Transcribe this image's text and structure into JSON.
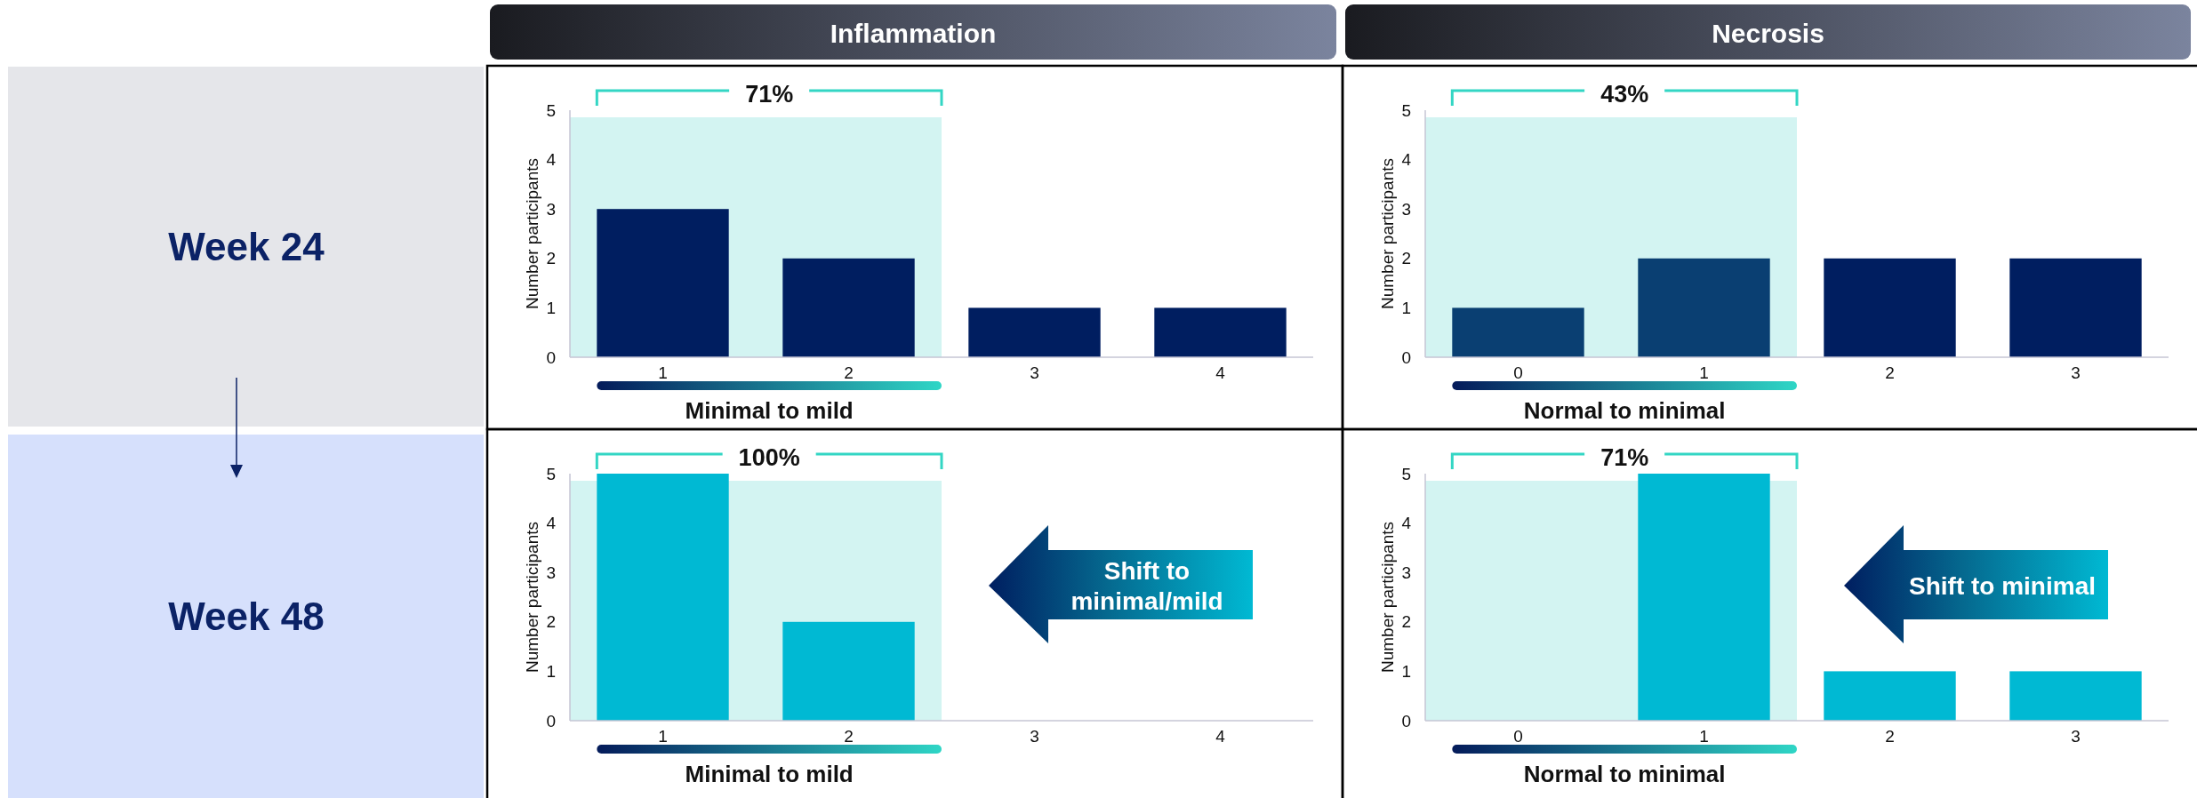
{
  "chart_data": [
    {
      "type": "other",
      "title": "Week 24"
    },
    {
      "type": "bar",
      "title": "Inflammation",
      "xlabel": "Minimal to mild",
      "ylabel": "Number participants",
      "categories": [
        "1",
        "2",
        "3",
        "4"
      ],
      "values": [
        3,
        2,
        1,
        1
      ],
      "color": "#001e60",
      "ylim": [
        0,
        5
      ],
      "yticks": [
        0,
        1,
        2,
        3,
        4,
        5
      ],
      "bands": [
        {
          "axis": "x",
          "from": "1",
          "to": "2",
          "label": "71%",
          "color": "#d3f4f2"
        }
      ]
    },
    {
      "type": "bar",
      "title": "Necrosis",
      "xlabel": "Normal to minimal",
      "ylabel": "Number participants",
      "categories": [
        "0",
        "1",
        "2",
        "3"
      ],
      "values": [
        1,
        2,
        2,
        2
      ],
      "colors": [
        "#0a3f72",
        "#0a3f72",
        "#001e60",
        "#001e60"
      ],
      "ylim": [
        0,
        5
      ],
      "yticks": [
        0,
        1,
        2,
        3,
        4,
        5
      ],
      "bands": [
        {
          "axis": "x",
          "from": "0",
          "to": "1",
          "label": "43%",
          "color": "#d3f4f2"
        }
      ]
    },
    {
      "type": "other",
      "title": "Week 48"
    },
    {
      "type": "bar",
      "xlabel": "Minimal to mild",
      "ylabel": "Number participants",
      "categories": [
        "1",
        "2",
        "3",
        "4"
      ],
      "values": [
        5,
        2,
        0,
        0
      ],
      "color": "#00b9d3",
      "ylim": [
        0,
        5
      ],
      "yticks": [
        0,
        1,
        2,
        3,
        4,
        5
      ],
      "bands": [
        {
          "axis": "x",
          "from": "1",
          "to": "2",
          "label": "100%",
          "color": "#d3f4f2"
        }
      ],
      "annotations": [
        "Shift to minimal/mild"
      ]
    },
    {
      "type": "bar",
      "xlabel": "Normal to minimal",
      "ylabel": "Number participants",
      "categories": [
        "0",
        "1",
        "2",
        "3"
      ],
      "values": [
        0,
        5,
        1,
        1
      ],
      "color": "#00b9d3",
      "ylim": [
        0,
        5
      ],
      "yticks": [
        0,
        1,
        2,
        3,
        4,
        5
      ],
      "bands": [
        {
          "axis": "x",
          "from": "0",
          "to": "1",
          "label": "71%",
          "color": "#d3f4f2"
        }
      ],
      "annotations": [
        "Shift to minimal"
      ]
    }
  ]
}
